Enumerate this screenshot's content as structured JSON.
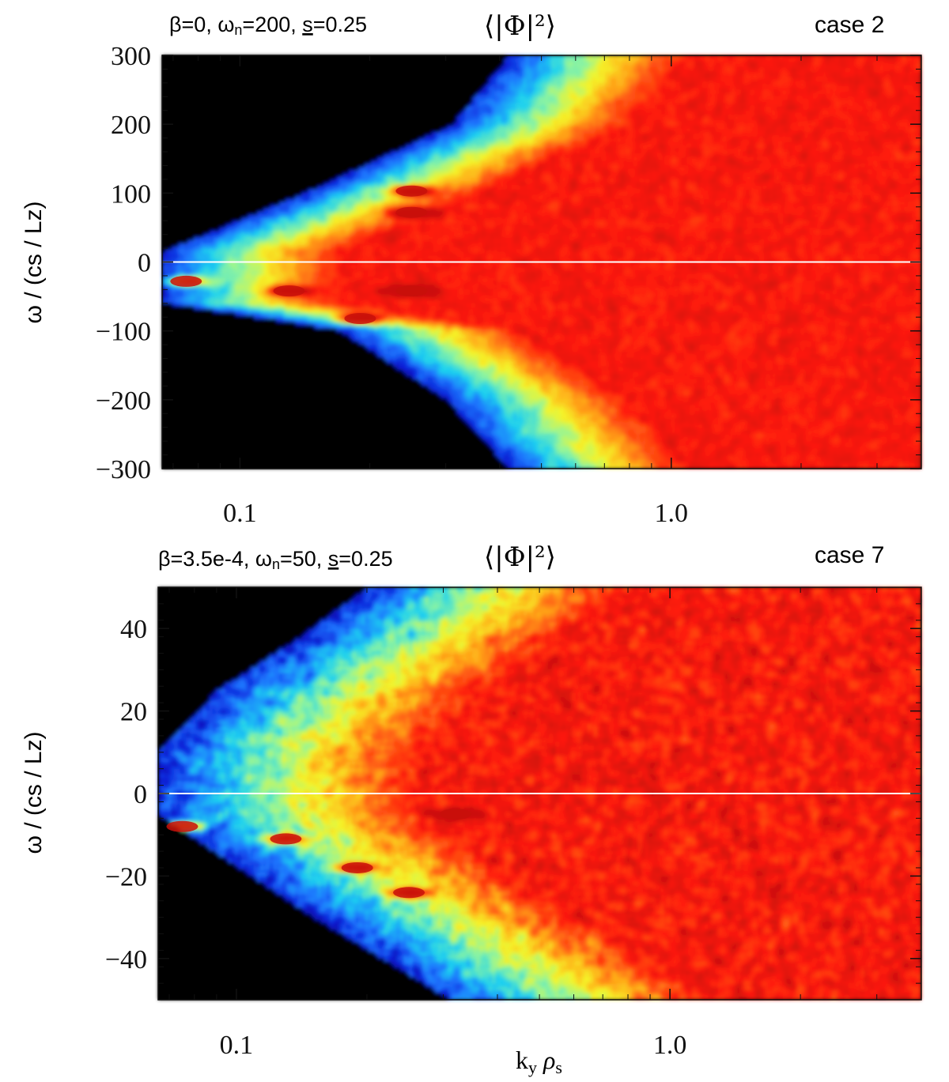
{
  "chart_data": [
    {
      "type": "heatmap",
      "case_label": "case 2",
      "header": "β=0, ωn=200, s=0.25",
      "header_parts": [
        "β=0, ω",
        "n",
        "=200, ",
        "s",
        "=0.25"
      ],
      "quantity": "⟨|Φ|²⟩",
      "ylabel": "ω / (cs / Lz)",
      "xlabel": "",
      "x_scale": "log",
      "xlim": [
        0.066,
        3.8
      ],
      "ylim": [
        -300,
        300
      ],
      "x_tick_labels": [
        "0.1",
        "1.0"
      ],
      "y_ticks": [
        300,
        200,
        100,
        0,
        -100,
        -200,
        -300
      ],
      "y_tick_labels": [
        "300",
        "200",
        "100",
        "0",
        "−100",
        "−200",
        "−300"
      ],
      "zero_line": true,
      "colormap": [
        "#000000",
        "#0a1bd6",
        "#1e78ff",
        "#1ed2f0",
        "#8ef5a0",
        "#f5f52a",
        "#ffb21a",
        "#ff5a14",
        "#ff1a0a",
        "#cc1008"
      ],
      "black_boundary_ky": [
        {
          "w": 300,
          "ky": 0.42
        },
        {
          "w": 200,
          "ky": 0.31
        },
        {
          "w": 100,
          "ky": 0.14
        },
        {
          "w": 15,
          "ky": 0.066
        },
        {
          "w": -60,
          "ky": 0.066
        },
        {
          "w": -100,
          "ky": 0.17
        },
        {
          "w": -200,
          "ky": 0.3
        },
        {
          "w": -300,
          "ky": 0.42
        }
      ],
      "peaks": [
        {
          "ky": 0.25,
          "w": 103
        },
        {
          "ky": 0.25,
          "w": 72
        },
        {
          "ky": 0.075,
          "w": -28
        },
        {
          "ky": 0.13,
          "w": -42
        },
        {
          "ky": 0.19,
          "w": -82
        },
        {
          "ky": 0.25,
          "w": -42
        }
      ]
    },
    {
      "type": "heatmap",
      "case_label": "case 7",
      "header": "β=3.5e-4, ωn=50, s=0.25",
      "header_parts": [
        "β=3.5e-4, ω",
        "n",
        "=50, ",
        "s",
        "=0.25"
      ],
      "quantity": "⟨|Φ|²⟩",
      "ylabel": "ω / (cs / Lz)",
      "xlabel": "ky ρs",
      "xlabel_parts": [
        "k",
        "y",
        " ρ",
        "s"
      ],
      "x_scale": "log",
      "xlim": [
        0.066,
        3.8
      ],
      "ylim": [
        -50,
        50
      ],
      "x_tick_labels": [
        "0.1",
        "1.0"
      ],
      "y_ticks": [
        40,
        20,
        0,
        -20,
        -40
      ],
      "y_tick_labels": [
        "40",
        "20",
        "0",
        "−20",
        "−40"
      ],
      "zero_line": true,
      "colormap": [
        "#000000",
        "#0a1bd6",
        "#1e78ff",
        "#1ed2f0",
        "#8ef5a0",
        "#f5f52a",
        "#ffb21a",
        "#ff5a14",
        "#ff1a0a",
        "#cc1008"
      ],
      "black_boundary_ky": [
        {
          "w": 50,
          "ky": 0.2
        },
        {
          "w": 38,
          "ky": 0.14
        },
        {
          "w": 25,
          "ky": 0.09
        },
        {
          "w": 10,
          "ky": 0.066
        },
        {
          "w": -5,
          "ky": 0.066
        },
        {
          "w": -30,
          "ky": 0.15
        },
        {
          "w": -50,
          "ky": 0.31
        }
      ],
      "peaks": [
        {
          "ky": 0.075,
          "w": -8
        },
        {
          "ky": 0.13,
          "w": -11
        },
        {
          "ky": 0.19,
          "w": -18
        },
        {
          "ky": 0.25,
          "w": -24
        },
        {
          "ky": 0.32,
          "w": -5
        }
      ]
    }
  ]
}
